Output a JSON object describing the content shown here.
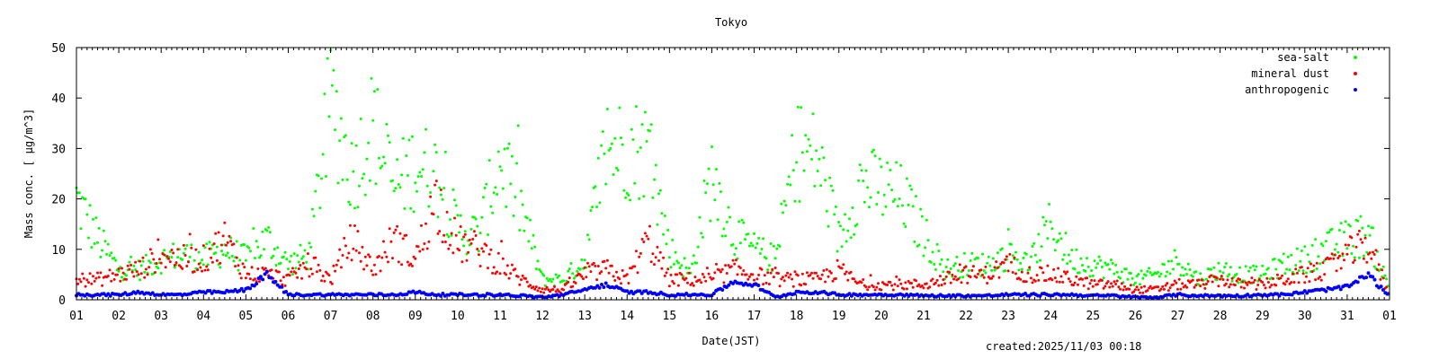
{
  "chart_data": {
    "type": "scatter",
    "title": "Tokyo",
    "xlabel": "Date(JST)",
    "ylabel": "Mass conc. [ μg/m^3]",
    "ylim": [
      0,
      50
    ],
    "xlim": [
      1,
      32
    ],
    "yticks": [
      "0",
      "10",
      "20",
      "30",
      "40",
      "50"
    ],
    "xtick_labels": [
      "01",
      "02",
      "03",
      "04",
      "05",
      "06",
      "07",
      "08",
      "09",
      "10",
      "11",
      "12",
      "13",
      "14",
      "15",
      "16",
      "17",
      "18",
      "19",
      "20",
      "21",
      "22",
      "23",
      "24",
      "25",
      "26",
      "27",
      "28",
      "29",
      "30",
      "31",
      "01"
    ],
    "x_step_days": 0.5,
    "legend_position": "top-right",
    "footer": "created:2025/11/03 00:18",
    "series": [
      {
        "name": "sea-salt",
        "color": "#00ff00",
        "values": [
          20,
          12,
          6,
          6,
          8,
          9,
          8,
          10,
          8,
          12,
          7,
          9,
          40,
          25,
          35,
          22,
          27,
          25,
          14,
          13,
          28,
          18,
          4,
          4,
          8,
          30,
          30,
          30,
          10,
          5,
          25,
          13,
          10,
          8,
          30,
          28,
          12,
          23,
          22,
          20,
          13,
          6,
          7,
          7,
          9,
          7,
          15,
          8,
          7,
          6,
          4,
          5,
          8,
          4,
          6,
          5,
          5,
          7,
          8,
          10,
          12,
          13,
          2
        ]
      },
      {
        "name": "mineral dust",
        "color": "#ff0000",
        "values": [
          4,
          4,
          5,
          6,
          9,
          8,
          8,
          12,
          5,
          5,
          4,
          7,
          4,
          12,
          6,
          12,
          8,
          20,
          11,
          10,
          7,
          4,
          2,
          2,
          5,
          6,
          4,
          12,
          4,
          4,
          4,
          6,
          5,
          4,
          4,
          4,
          6,
          3,
          3,
          3,
          3,
          4,
          5,
          5,
          7,
          5,
          5,
          4,
          3,
          3,
          2,
          2,
          3,
          3,
          4,
          3,
          3,
          4,
          5,
          6,
          9,
          11,
          1
        ]
      },
      {
        "name": "anthropogenic",
        "color": "#0000ff",
        "values": [
          1,
          1,
          1,
          1.5,
          1,
          1,
          1.5,
          1.5,
          2,
          5,
          1,
          1,
          1,
          1,
          1,
          1,
          1.5,
          1,
          1,
          1,
          1,
          0.8,
          0.5,
          1,
          2,
          3,
          1.5,
          1.5,
          1,
          1,
          1,
          3.5,
          3,
          0.5,
          1.5,
          1.5,
          1,
          1,
          1,
          1,
          0.8,
          0.8,
          0.8,
          0.8,
          1,
          1,
          1,
          1,
          0.8,
          0.8,
          0.5,
          0.5,
          1,
          0.8,
          0.8,
          0.8,
          1,
          1,
          1.5,
          2,
          2.5,
          5,
          0.5
        ]
      }
    ]
  }
}
